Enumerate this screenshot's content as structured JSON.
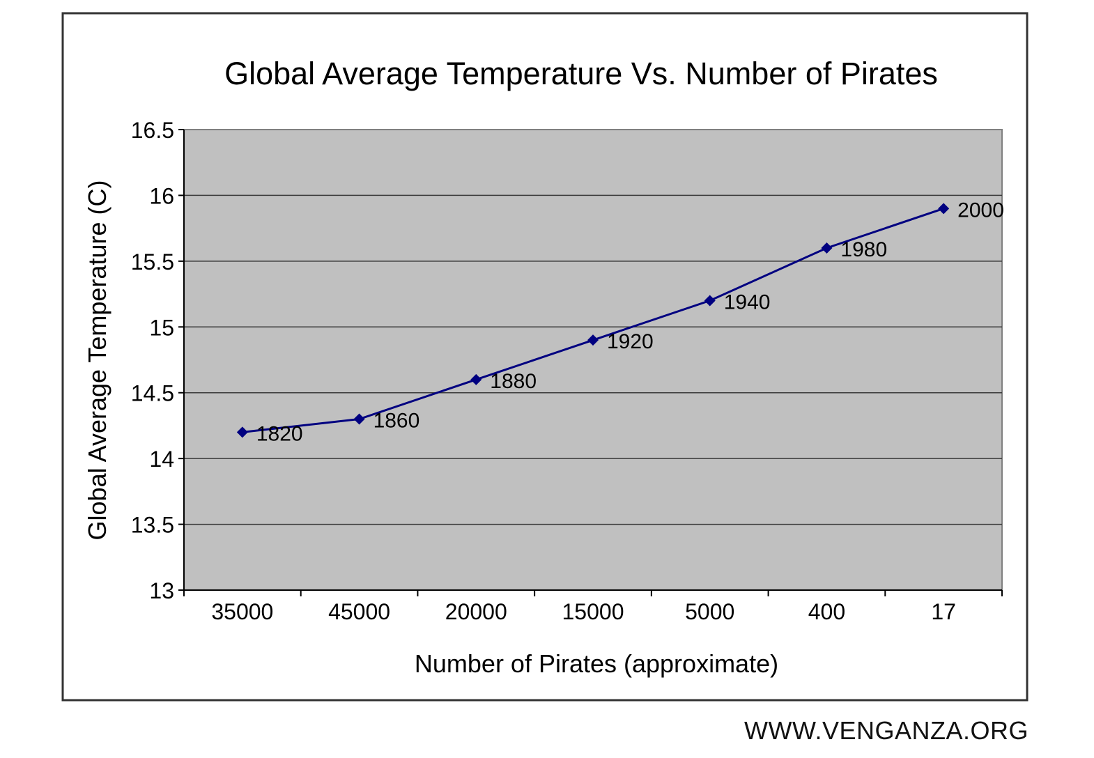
{
  "chart_data": {
    "type": "line",
    "title": "Global Average Temperature Vs. Number of Pirates",
    "xlabel": "Number of Pirates (approximate)",
    "ylabel": "Global Average Temperature (C)",
    "categories": [
      "35000",
      "45000",
      "20000",
      "15000",
      "5000",
      "400",
      "17"
    ],
    "series": [
      {
        "name": "Temperature",
        "values": [
          14.2,
          14.3,
          14.6,
          14.9,
          15.2,
          15.6,
          15.9
        ],
        "point_labels": [
          "1820",
          "1860",
          "1880",
          "1920",
          "1940",
          "1980",
          "2000"
        ],
        "color": "#000080"
      }
    ],
    "ylim": [
      13,
      16.5
    ],
    "yticks": [
      13,
      13.5,
      14,
      14.5,
      15,
      15.5,
      16,
      16.5
    ],
    "ytick_labels": [
      "13",
      "13.5",
      "14",
      "14.5",
      "15",
      "15.5",
      "16",
      "16.5"
    ],
    "grid": true,
    "legend": "none",
    "plot_background": "#c0c0c0"
  },
  "watermark": "WWW.VENGANZA.ORG"
}
